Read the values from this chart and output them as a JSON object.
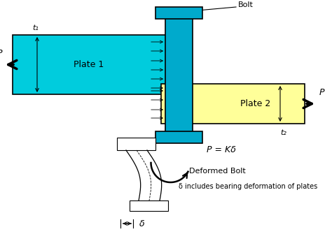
{
  "plate1_color": "#00ccdd",
  "plate2_color": "#ffff99",
  "bolt_color": "#00aacc",
  "plate1_label": "Plate 1",
  "plate2_label": "Plate 2",
  "bolt_label": "Bolt",
  "t1_label": "t₁",
  "t2_label": "t₂",
  "P_label": "P",
  "eq_label": "P = Kδ",
  "deformed_label": "Deformed Bolt",
  "deformed_desc": "δ includes bearing deformation of plates",
  "delta_label": "δ",
  "figw": 4.74,
  "figh": 3.45,
  "dpi": 100
}
